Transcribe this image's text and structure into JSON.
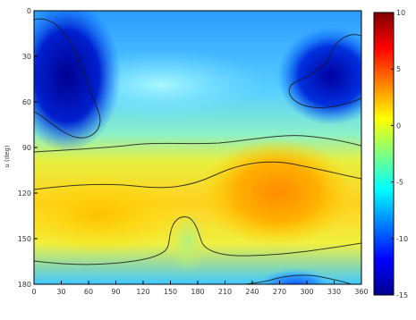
{
  "chart_data": {
    "type": "heatmap",
    "title": "",
    "xlabel": "",
    "ylabel": "u (deg)",
    "x_ticks": [
      0,
      30,
      60,
      90,
      120,
      150,
      180,
      210,
      240,
      270,
      300,
      330,
      360
    ],
    "y_ticks": [
      0,
      30,
      60,
      90,
      120,
      150,
      180
    ],
    "xlim": [
      0,
      360
    ],
    "ylim": [
      0,
      180
    ],
    "y_reversed": true,
    "colorbar": {
      "ticks": [
        10,
        5,
        0,
        -5,
        -10,
        -15
      ],
      "range": [
        -15,
        10
      ],
      "colormap": "jet"
    },
    "description_regions": [
      {
        "region": "upper-left blob",
        "value": -14
      },
      {
        "region": "upper-right blob",
        "value": -12
      },
      {
        "region": "middle band left",
        "value": 3
      },
      {
        "region": "middle band right",
        "value": 6
      },
      {
        "region": "bottom right blob",
        "value": -8
      }
    ]
  },
  "colors": {
    "dark_blue": "#00008f",
    "blue": "#0000ff",
    "cyan": "#00ffff",
    "yellow": "#ffff00",
    "orange": "#ff8000",
    "red": "#800000"
  }
}
